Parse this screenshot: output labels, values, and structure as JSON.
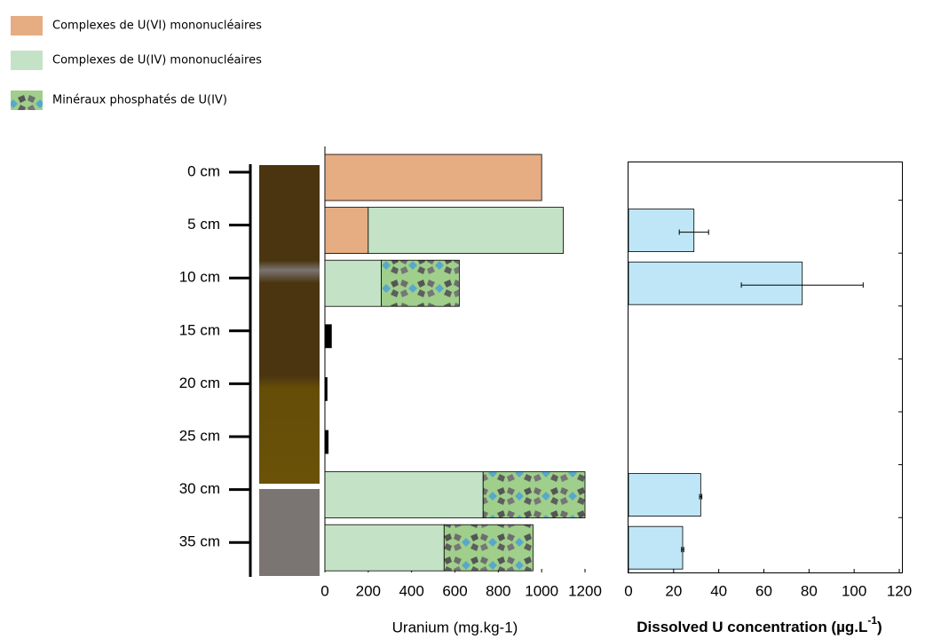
{
  "chart_data": [
    {
      "type": "hbar",
      "categories": [
        "0 cm",
        "5 cm",
        "10 cm",
        "15 cm",
        "20 cm",
        "25 cm",
        "30 cm",
        "35 cm"
      ],
      "series": [
        {
          "name": "Complexes de U(VI) mononucléaires",
          "color": "#e6ac82",
          "values": [
            1000,
            200,
            null,
            null,
            null,
            null,
            null,
            null
          ]
        },
        {
          "name": "Complexes de U(IV) mononucléaires",
          "color": "#c4e3c6",
          "values": [
            null,
            900,
            260,
            null,
            null,
            null,
            730,
            550
          ]
        },
        {
          "name": "Minéraux phosphatés de U(IV)",
          "color": "#9fcf8a",
          "pattern": true,
          "values": [
            null,
            null,
            360,
            null,
            null,
            null,
            470,
            410
          ]
        },
        {
          "color": "#000000",
          "values": [
            null,
            null,
            null,
            30,
            10,
            15,
            null,
            null
          ]
        }
      ],
      "xlim": [
        0,
        1200
      ],
      "xticks": [
        0,
        200,
        400,
        600,
        800,
        1000,
        1200
      ],
      "xlabel": "Uranium (mg.kg-1)"
    },
    {
      "type": "hbar",
      "series": [
        {
          "color": "#bfe6f7",
          "values": [
            null,
            29,
            77,
            null,
            null,
            null,
            32,
            24
          ],
          "errors": [
            null,
            6.5,
            27,
            null,
            null,
            null,
            0.5,
            0.5
          ]
        }
      ],
      "xlim": [
        0,
        120
      ],
      "xticks": [
        0,
        20,
        40,
        60,
        80,
        100,
        120
      ],
      "xlabel": [
        "Dissolved U concentration (µg.L",
        "-1",
        ")"
      ]
    }
  ]
}
